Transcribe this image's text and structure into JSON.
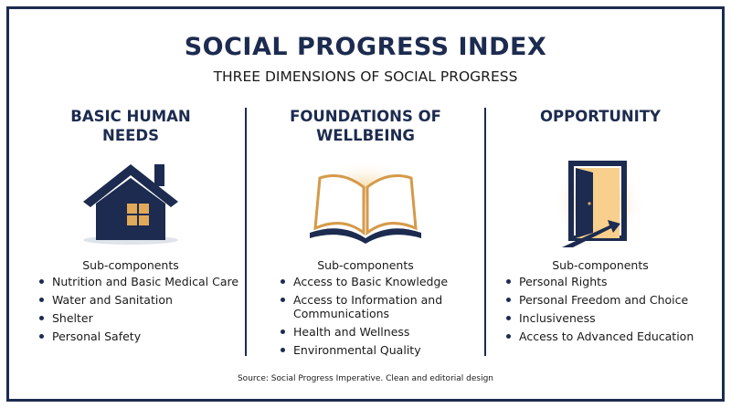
{
  "header": {
    "title": "SOCIAL PROGRESS INDEX",
    "subtitle": "THREE DIMENSIONS OF SOCIAL PROGRESS"
  },
  "columns": [
    {
      "title": "BASIC HUMAN NEEDS",
      "subheading": "Sub-components",
      "items": [
        "Nutrition and Basic Medical Care",
        "Water and Sanitation",
        "Shelter",
        "Personal Safety"
      ]
    },
    {
      "title": "FOUNDATIONS OF WELLBEING",
      "subheading": "Sub-components",
      "items": [
        "Access to Basic Knowledge",
        "Access to Information and Communications",
        "Health and Wellness",
        "Environmental Quality"
      ]
    },
    {
      "title": "OPPORTUNITY",
      "subheading": "Sub-components",
      "items": [
        "Personal Rights",
        "Personal Freedom and Choice",
        "Inclusiveness",
        "Access to Advanced Education"
      ]
    }
  ],
  "footer": {
    "source": "Source: Social Progress Imperative. Clean and editorial design"
  }
}
